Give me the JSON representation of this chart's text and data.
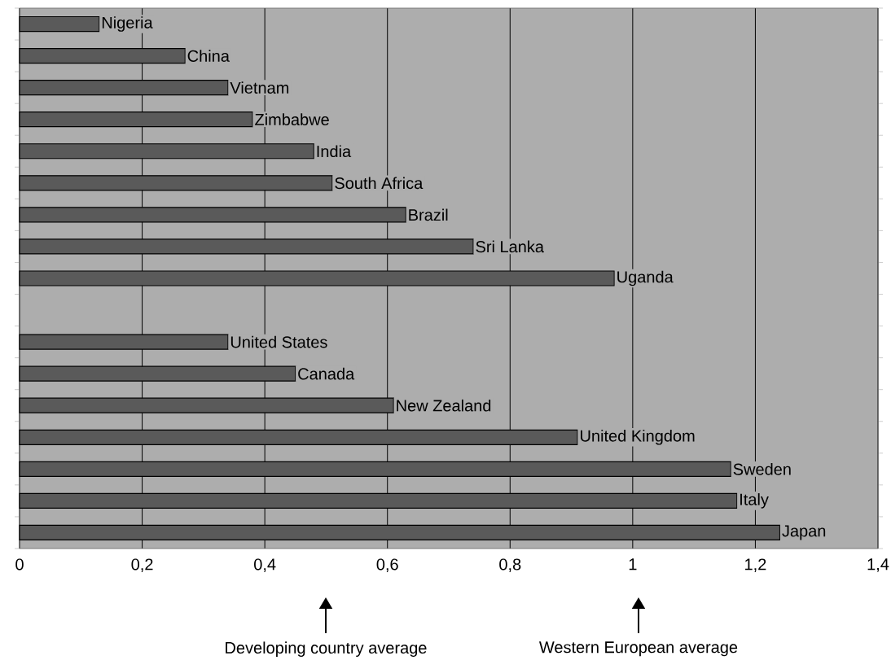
{
  "chart_data": {
    "type": "bar",
    "orientation": "horizontal",
    "categories": [
      "Nigeria",
      "China",
      "Vietnam",
      "Zimbabwe",
      "India",
      "South Africa",
      "Brazil",
      "Sri Lanka",
      "Uganda",
      null,
      "United States",
      "Canada",
      "New Zealand",
      "United Kingdom",
      "Sweden",
      "Italy",
      "Japan"
    ],
    "values": [
      0.13,
      0.27,
      0.34,
      0.38,
      0.48,
      0.51,
      0.63,
      0.74,
      0.97,
      null,
      0.34,
      0.45,
      0.61,
      0.91,
      1.16,
      1.17,
      1.24
    ],
    "color": "#5a5a5a",
    "xlim": [
      0,
      1.4
    ],
    "xticks": [
      0,
      {
        "value": 0.2,
        "label": "0,2"
      },
      {
        "value": 0.4,
        "label": "0,4"
      },
      {
        "value": 0.6,
        "label": "0,6"
      },
      {
        "value": 0.8,
        "label": "0,8"
      },
      1,
      {
        "value": 1.2,
        "label": "1,2"
      },
      {
        "value": 1.4,
        "label": "1,4"
      }
    ],
    "grid": "x",
    "tick_labels": "x",
    "annotations": [
      "Developing country average",
      "Western European average"
    ]
  }
}
